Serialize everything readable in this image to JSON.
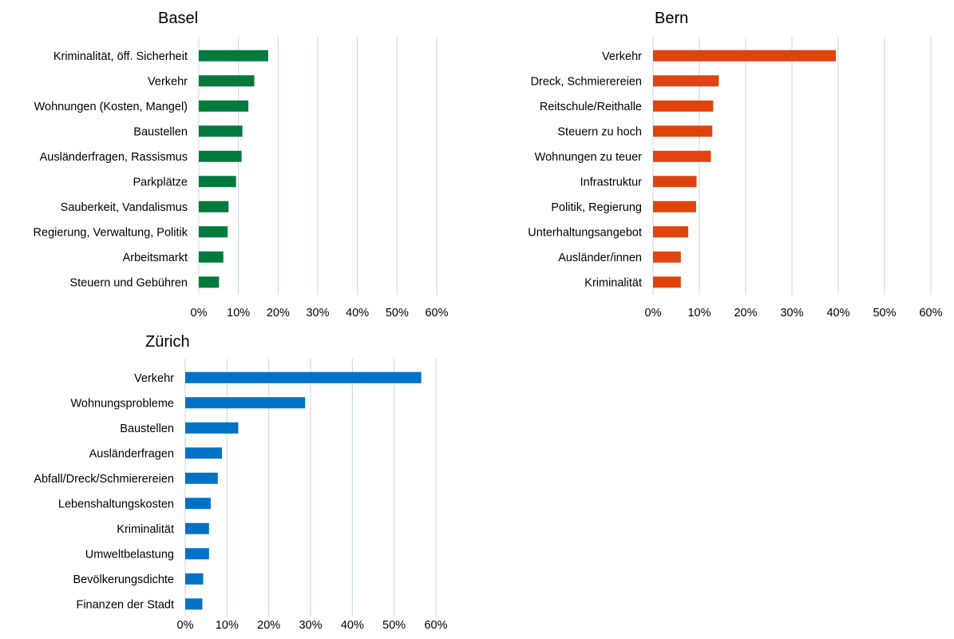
{
  "chart_data": [
    {
      "type": "bar",
      "orientation": "horizontal",
      "title": "Basel",
      "color": "#007a3d",
      "categories": [
        "Kriminalität, öff. Sicherheit",
        "Verkehr",
        "Wohnungen (Kosten, Mangel)",
        "Baustellen",
        "Ausländerfragen, Rassismus",
        "Parkplätze",
        "Sauberkeit, Vandalismus",
        "Regierung, Verwaltung, Politik",
        "Arbeitsmarkt",
        "Steuern und Gebühren"
      ],
      "values": [
        17.5,
        14,
        12.5,
        11,
        10.8,
        9.4,
        7.5,
        7.3,
        6.2,
        5.1
      ],
      "xlim": [
        0,
        60
      ],
      "xticks": [
        "0%",
        "10%",
        "20%",
        "30%",
        "40%",
        "50%",
        "60%"
      ],
      "grid": true
    },
    {
      "type": "bar",
      "orientation": "horizontal",
      "title": "Bern",
      "color": "#e0440e",
      "categories": [
        "Verkehr",
        "Dreck, Schmierereien",
        "Reitschule/Reithalle",
        "Steuern zu hoch",
        "Wohnungen zu teuer",
        "Infrastruktur",
        "Politik, Regierung",
        "Unterhaltungsangebot",
        "Ausländer/innen",
        "Kriminalität"
      ],
      "values": [
        39.5,
        14.2,
        13,
        12.8,
        12.5,
        9.4,
        9.3,
        7.6,
        6,
        6
      ],
      "xlim": [
        0,
        60
      ],
      "xticks": [
        "0%",
        "10%",
        "20%",
        "30%",
        "40%",
        "50%",
        "60%"
      ],
      "grid": true
    },
    {
      "type": "bar",
      "orientation": "horizontal",
      "title": "Zürich",
      "color": "#0072c6",
      "categories": [
        "Verkehr",
        "Wohnungsprobleme",
        "Baustellen",
        "Ausländerfragen",
        "Abfall/Dreck/Schmierereien",
        "Lebenshaltungskosten",
        "Kriminalität",
        "Umweltbelastung",
        "Bevölkerungsdichte",
        "Finanzen der Stadt"
      ],
      "values": [
        56.5,
        28.7,
        12.7,
        8.8,
        7.8,
        6.1,
        5.7,
        5.7,
        4.3,
        4.1
      ],
      "xlim": [
        0,
        60
      ],
      "xticks": [
        "0%",
        "10%",
        "20%",
        "30%",
        "40%",
        "50%",
        "60%"
      ],
      "grid": true
    }
  ]
}
